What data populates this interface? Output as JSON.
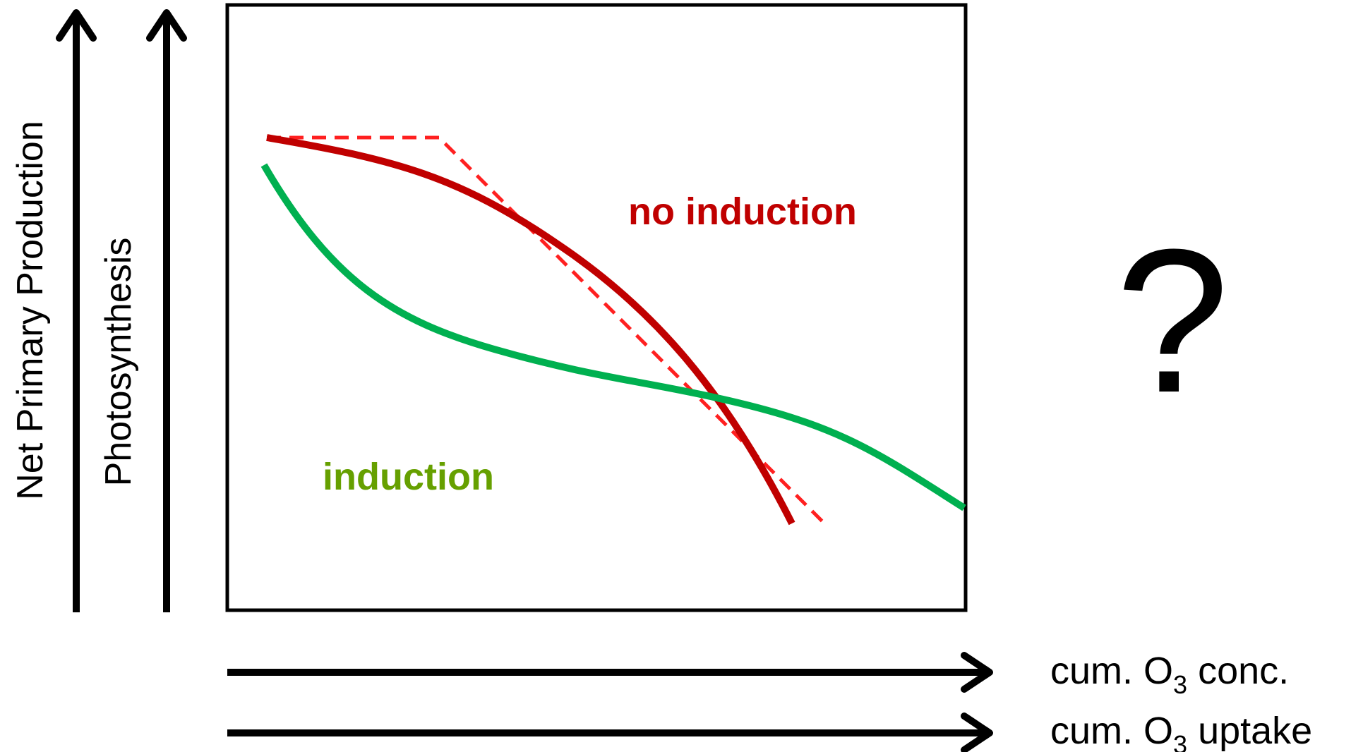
{
  "diagram": {
    "y_axes": [
      {
        "key": "outer",
        "label": "Net Primary Production"
      },
      {
        "key": "inner",
        "label": "Photosynthesis"
      }
    ],
    "x_axes": [
      {
        "key": "conc",
        "prefix": "cum. O",
        "subscript": "3",
        "suffix": " conc."
      },
      {
        "key": "uptake",
        "prefix": "cum. O",
        "subscript": "3",
        "suffix": " uptake"
      }
    ],
    "curves": {
      "no_induction": {
        "label": "no induction",
        "color": "#c00000",
        "dashed_color": "#ff2020"
      },
      "induction": {
        "label": "induction",
        "color": "#00b050",
        "label_color": "#66a000"
      }
    },
    "question_mark": "?"
  }
}
